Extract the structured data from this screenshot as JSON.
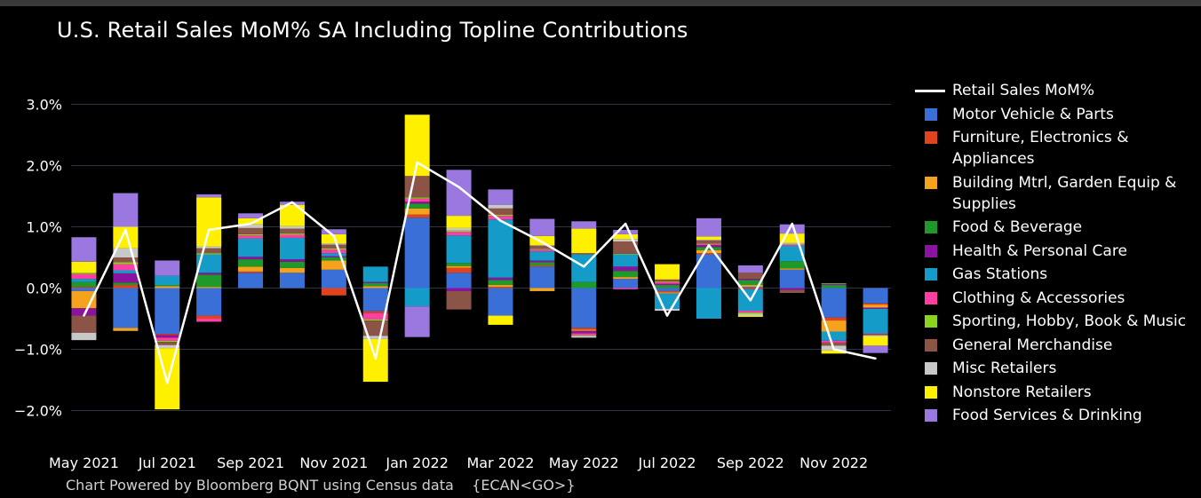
{
  "title": "U.S. Retail Sales MoM% SA Including Topline Contributions",
  "footer": "Chart Powered by Bloomberg BQNT using Census data    {ECAN<GO>}",
  "chart_data": {
    "type": "bar",
    "stacked": true,
    "ylim": [
      -2.2,
      3.2
    ],
    "y_ticks": [
      3,
      2,
      1,
      0,
      -1,
      -2
    ],
    "y_tick_labels": [
      "3.0%",
      "2.0%",
      "1.0%",
      "0.0%",
      "−1.0%",
      "−2.0%"
    ],
    "grid": true,
    "legend_position": "right",
    "categories": [
      "May 2021",
      "Jun 2021",
      "Jul 2021",
      "Aug 2021",
      "Sep 2021",
      "Oct 2021",
      "Nov 2021",
      "Dec 2021",
      "Jan 2022",
      "Feb 2022",
      "Mar 2022",
      "Apr 2022",
      "May 2022",
      "Jun 2022",
      "Jul 2022",
      "Aug 2022",
      "Sep 2022",
      "Oct 2022",
      "Nov 2022",
      "Dec 2022"
    ],
    "x_tick_labels": [
      {
        "index": 0,
        "label": "May 2021"
      },
      {
        "index": 2,
        "label": "Jul 2021"
      },
      {
        "index": 4,
        "label": "Sep 2021"
      },
      {
        "index": 6,
        "label": "Nov 2021"
      },
      {
        "index": 8,
        "label": "Jan 2022"
      },
      {
        "index": 10,
        "label": "Mar 2022"
      },
      {
        "index": 12,
        "label": "May 2022"
      },
      {
        "index": 14,
        "label": "Jul 2022"
      },
      {
        "index": 16,
        "label": "Sep 2022"
      },
      {
        "index": 18,
        "label": "Nov 2022"
      }
    ],
    "line": {
      "name": "Retail Sales MoM%",
      "color": "#ffffff",
      "values": [
        -0.45,
        0.95,
        -1.55,
        0.95,
        1.05,
        1.4,
        0.85,
        -1.15,
        2.05,
        1.65,
        1.1,
        0.75,
        0.35,
        1.05,
        -0.45,
        0.7,
        -0.2,
        1.05,
        -1.0,
        -1.15
      ]
    },
    "series": [
      {
        "name": "Motor Vehicle & Parts",
        "color": "#3a6fd8",
        "values": [
          -0.05,
          -0.65,
          -0.75,
          -0.45,
          0.25,
          0.25,
          0.3,
          -0.38,
          1.15,
          0.25,
          -0.45,
          0.35,
          -0.65,
          0.15,
          -0.05,
          0.55,
          0.02,
          0.3,
          -0.48,
          -0.25
        ]
      },
      {
        "name": "Furniture, Electronics & Appliances",
        "color": "#e0441f",
        "values": [
          0.02,
          0.05,
          -0.02,
          -0.05,
          0.02,
          0.0,
          -0.12,
          -0.03,
          0.05,
          0.08,
          0.02,
          0.02,
          -0.03,
          0.0,
          -0.02,
          0.02,
          -0.02,
          0.0,
          -0.05,
          -0.02
        ]
      },
      {
        "name": "Building Mtrl, Garden Equip & Supplies",
        "color": "#f5a21c",
        "values": [
          -0.28,
          -0.05,
          0.03,
          0.02,
          0.08,
          0.08,
          0.15,
          0.03,
          0.1,
          0.03,
          0.03,
          -0.05,
          -0.02,
          0.03,
          -0.02,
          0.05,
          0.03,
          0.02,
          -0.18,
          -0.05
        ]
      },
      {
        "name": "Food & Beverage",
        "color": "#1f9a2a",
        "values": [
          0.08,
          0.04,
          0.02,
          0.2,
          0.12,
          0.1,
          0.05,
          0.05,
          0.08,
          0.05,
          0.08,
          0.05,
          0.1,
          0.1,
          0.05,
          0.05,
          0.08,
          0.12,
          0.05,
          0.0
        ]
      },
      {
        "name": "Health & Personal Care",
        "color": "#8a14a0",
        "values": [
          -0.12,
          0.15,
          -0.04,
          0.03,
          0.04,
          0.04,
          0.02,
          0.02,
          0.03,
          -0.05,
          0.04,
          0.03,
          -0.04,
          0.07,
          0.02,
          0.03,
          0.02,
          -0.03,
          0.02,
          -0.02
        ]
      },
      {
        "name": "Gas Stations",
        "color": "#159bc7",
        "values": [
          0.05,
          0.05,
          0.15,
          0.3,
          0.3,
          0.35,
          0.05,
          0.25,
          -0.3,
          0.45,
          0.95,
          0.15,
          0.45,
          0.2,
          -0.25,
          -0.5,
          -0.35,
          0.25,
          -0.15,
          -0.4
        ]
      },
      {
        "name": "Clothing & Accessories",
        "color": "#ff3ea5",
        "values": [
          0.08,
          0.1,
          -0.05,
          -0.05,
          0.05,
          0.05,
          0.06,
          -0.1,
          0.05,
          0.06,
          0.06,
          0.03,
          -0.03,
          -0.02,
          0.03,
          0.02,
          -0.03,
          0.02,
          -0.03,
          -0.01
        ]
      },
      {
        "name": "Sporting, Hobby, Book & Music",
        "color": "#8bd41e",
        "values": [
          0.02,
          0.03,
          -0.02,
          0.02,
          0.02,
          0.02,
          0.02,
          -0.02,
          0.02,
          0.02,
          0.02,
          0.01,
          -0.01,
          0.01,
          0.01,
          0.01,
          -0.02,
          0.01,
          0.01,
          0.0
        ]
      },
      {
        "name": "General Merchandise",
        "color": "#8c5446",
        "values": [
          -0.28,
          0.08,
          -0.05,
          0.08,
          0.1,
          0.08,
          0.06,
          -0.25,
          0.35,
          -0.3,
          0.1,
          0.05,
          0.02,
          0.2,
          0.03,
          0.05,
          0.1,
          -0.05,
          -0.05,
          -0.02
        ]
      },
      {
        "name": "Misc Retailers",
        "color": "#c8c8c8",
        "values": [
          -0.12,
          0.15,
          -0.05,
          0.03,
          0.06,
          0.04,
          0.02,
          -0.05,
          0.0,
          0.04,
          0.06,
          0.01,
          -0.03,
          0.04,
          -0.03,
          0.01,
          -0.03,
          0.02,
          -0.08,
          -0.02
        ]
      },
      {
        "name": "Nonstore Retailers",
        "color": "#fff000",
        "values": [
          0.18,
          0.35,
          -1.0,
          0.8,
          0.1,
          0.35,
          0.15,
          -0.7,
          1.0,
          0.2,
          -0.15,
          0.15,
          0.4,
          0.08,
          0.25,
          0.05,
          -0.02,
          0.15,
          -0.05,
          -0.15
        ]
      },
      {
        "name": "Food Services & Drinking",
        "color": "#9b77e0",
        "values": [
          0.4,
          0.55,
          0.25,
          0.05,
          0.08,
          0.05,
          0.08,
          0.0,
          -0.5,
          0.75,
          0.25,
          0.28,
          0.12,
          0.07,
          0.0,
          0.3,
          0.12,
          0.15,
          0.0,
          -0.12
        ]
      }
    ]
  }
}
